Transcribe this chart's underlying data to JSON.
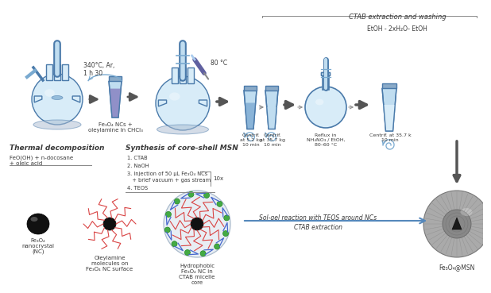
{
  "bg_color": "#ffffff",
  "text_color": "#3a3a3a",
  "blue_dark": "#4a7aaa",
  "blue_mid": "#7aaad0",
  "blue_light": "#c0ddf0",
  "blue_liquid": "#8ab4d8",
  "blue_pale": "#d8ecf8",
  "gray_dark": "#555555",
  "gray_mid": "#888888",
  "gray_light": "#cccccc",
  "red_mol": "#d94444",
  "green_mol": "#44aa44",
  "purple_liquid": "#9090c8",
  "purple_dark": "#6060a0",
  "title_ctab": "CTAB extraction and washing",
  "text_etoh": "EtOH - 2xH₂O- EtOH",
  "text_340": "340°C, Ar,\n1 h 30",
  "text_80c": "80 °C",
  "text_fe3o4": "Fe₃O₄ NCs +\noleylamine in CHCl₃",
  "section_thermal": "Thermal decomposition",
  "text_feo": "FeO(OH) + n-docosane\n+ oleic acid",
  "section_msn": "Synthesis of core-shell MSN",
  "steps": [
    "1. CTAB",
    "2. NaOH",
    "3. Injection of 50 μL Fe₃O₄ NCs",
    "   + brief vacuum + gas stream",
    "4. TEOS"
  ],
  "text_10x": "10x",
  "cent1": "Centrif.\nat 5.2 kg\n10 min",
  "cent2": "Centrif.\nat 35.7 kg\n10 min",
  "reflux": "Reflux in\nNH₄NO₃ / EtOH,\n80–60 °C",
  "cent3": "Centrif. at 35.7 k\n10 min",
  "lbl_nc": "Fe₃O₄\nnanocrystal\n(NC)",
  "lbl_oley": "Oleylamine\nmolecules on\nFe₃O₄ NC surface",
  "lbl_ctab": "Hydrophobic\nFe₃O₄ NC in\nCTAB micelle\ncore",
  "lbl_msn": "Fe₃O₄@MSN",
  "sol_gel": "Sol-gel reaction with TEOS around NCs",
  "ctab_ext": "CTAB extraction"
}
